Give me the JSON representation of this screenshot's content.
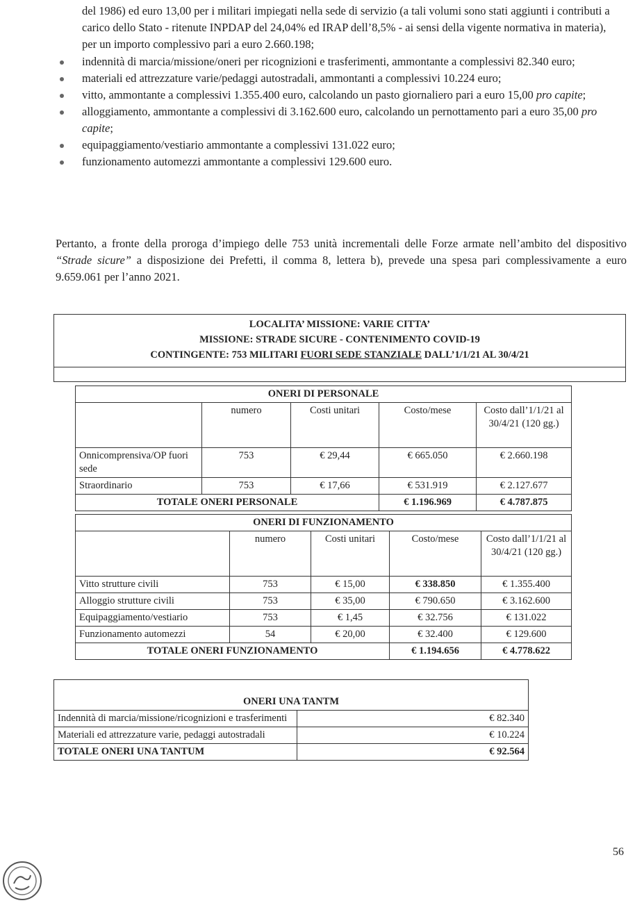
{
  "intro": "del 1986) ed euro 13,00 per i militari impiegati nella sede di servizio (a tali volumi sono stati aggiunti i contributi a carico dello Stato - ritenute INPDAP del 24,04% ed IRAP dell’8,5% - ai sensi della vigente normativa in materia), per un importo complessivo pari a euro 2.660.198;",
  "bullets": [
    {
      "text": "indennità di marcia/missione/oneri per ricognizioni e trasferimenti, ammontante a complessivi 82.340 euro;"
    },
    {
      "text": "materiali ed attrezzature varie/pedaggi autostradali, ammontanti a complessivi 10.224 euro;"
    },
    {
      "text": "vitto, ammontante a complessivi 1.355.400 euro, calcolando un pasto giornaliero pari a euro 15,00",
      "italic": "pro capite",
      "tail": ";"
    },
    {
      "text": "alloggiamento, ammontante a complessivi di 3.162.600 euro, calcolando un pernottamento pari a euro 35,00",
      "italic": "pro capite",
      "tail": ";"
    },
    {
      "text": "equipaggiamento/vestiario ammontante a complessivi 131.022 euro;"
    },
    {
      "text": "funzionamento automezzi ammontante a complessivi 129.600 euro."
    }
  ],
  "paragraph": {
    "before": "Pertanto, a fronte della proroga d’impiego delle 753 unità incrementali delle Forze armate nell’ambito del dispositivo ",
    "italic": "“Strade sicure”",
    "after": " a disposizione dei Prefetti, il comma 8, lettera b), prevede una spesa pari complessivamente a euro 9.659.061 per l’anno 2021."
  },
  "header_box": {
    "lines": [
      "LOCALITA’ MISSIONE: VARIE CITTA’",
      "MISSIONE: STRADE SICURE - CONTENIMENTO COVID-19"
    ],
    "line3": {
      "before": "CONTINGENTE: 753 MILITARI ",
      "underline": "FUORI SEDE STANZIALE",
      "after": " DALL’1/1/21 AL 30/4/21"
    }
  },
  "personale": {
    "title": "ONERI DI PERSONALE",
    "columns": [
      "numero",
      "Costi unitari",
      "Costo/mese",
      "Costo dall’1/1/21 al 30/4/21 (120 gg.)"
    ],
    "rows": [
      [
        "Onnicomprensiva/OP fuori sede",
        "753",
        "€ 29,44",
        "€ 665.050",
        "€ 2.660.198"
      ],
      [
        "Straordinario",
        "753",
        "€ 17,66",
        "€ 531.919",
        "€ 2.127.677"
      ]
    ],
    "total": [
      "TOTALE ONERI PERSONALE",
      "€ 1.196.969",
      "€ 4.787.875"
    ]
  },
  "funzionamento": {
    "title": "ONERI DI FUNZIONAMENTO",
    "columns": [
      "numero",
      "Costi unitari",
      "Costo/mese",
      "Costo dall’1/1/21 al 30/4/21 (120 gg.)"
    ],
    "rows": [
      [
        "Vitto strutture civili",
        "753",
        "€ 15,00",
        "€ 338.850",
        "€ 1.355.400"
      ],
      [
        "Alloggio strutture civili",
        "753",
        "€ 35,00",
        "€ 790.650",
        "€ 3.162.600"
      ],
      [
        "Equipaggiamento/vestiario",
        "753",
        "€ 1,45",
        "€ 32.756",
        "€ 131.022"
      ],
      [
        "Funzionamento automezzi",
        "54",
        "€ 20,00",
        "€ 32.400",
        "€ 129.600"
      ]
    ],
    "total": [
      "TOTALE ONERI FUNZIONAMENTO",
      "€ 1.194.656",
      "€ 4.778.622"
    ]
  },
  "una_tantum": {
    "title": "ONERI UNA TANTM",
    "rows": [
      [
        "Indennità di marcia/missione/ricognizioni e trasferimenti",
        "€ 82.340"
      ],
      [
        "Materiali ed attrezzature varie, pedaggi autostradali",
        "€ 10.224"
      ]
    ],
    "total": [
      "TOTALE ONERI UNA TANTUM",
      "€ 92.564"
    ]
  },
  "page_number": "56"
}
